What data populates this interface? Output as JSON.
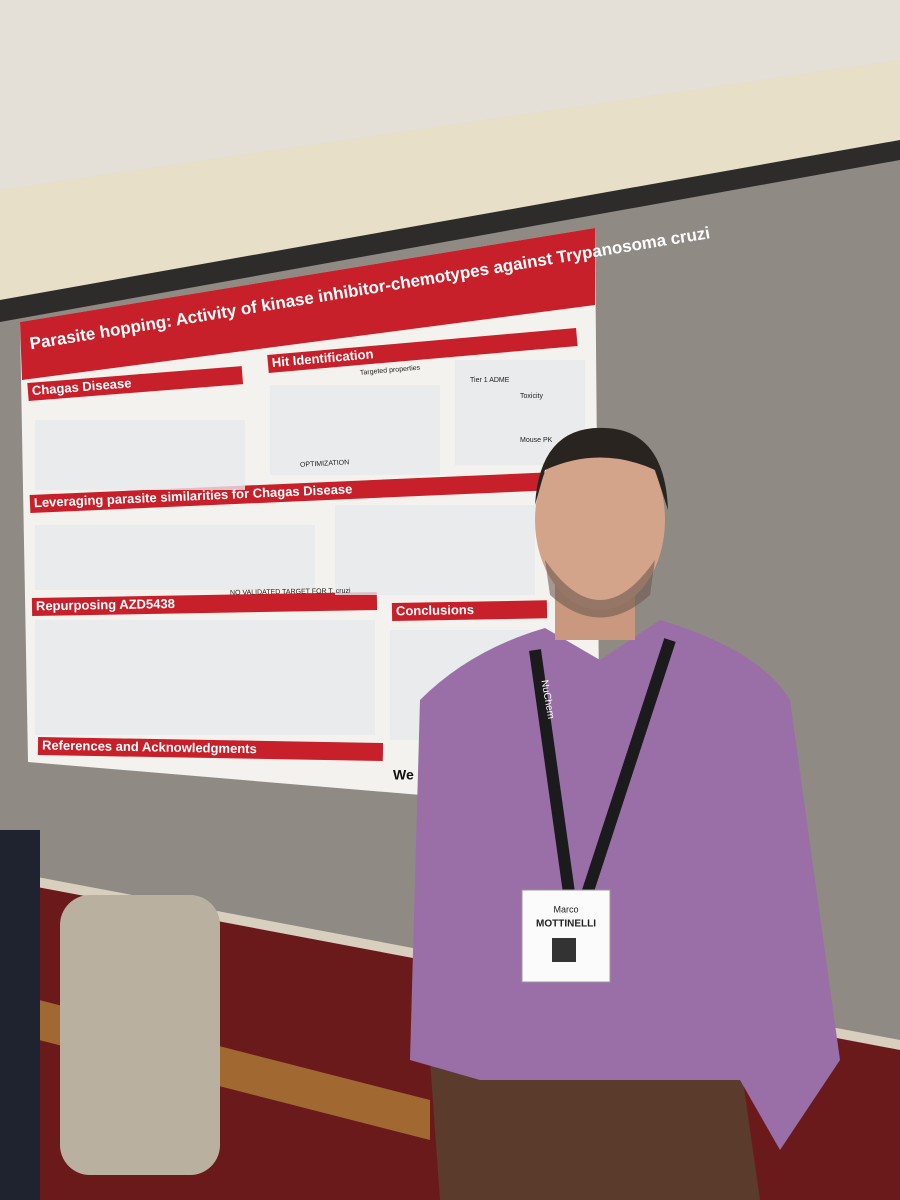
{
  "poster": {
    "title": "Parasite hopping: Activity of kinase inhibitor-chemotypes against Trypanosoma cruzi",
    "sections": [
      "Chagas Disease",
      "Hit Identification",
      "Leveraging parasite similarities for Chagas Disease",
      "Repurposing AZD5438",
      "Conclusions",
      "References and Acknowledgments"
    ],
    "labels": [
      "Targeted properties",
      "Tier 1 ADME",
      "Toxicity",
      "Mouse PK",
      "OPTIMIZATION",
      "NO VALIDATED TARGET FOR T. cruzi"
    ],
    "footer_text": "We lov"
  },
  "badge": {
    "first_name": "Marco",
    "last_name": "MOTTINELLI"
  },
  "lanyard": {
    "brand": "NuChem"
  }
}
